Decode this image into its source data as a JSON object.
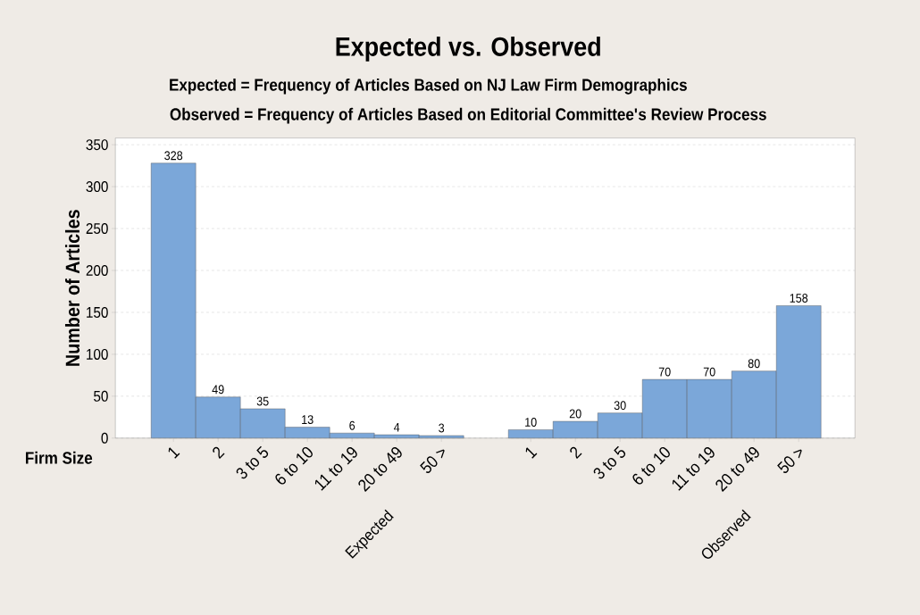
{
  "chart_data": {
    "type": "bar",
    "title": "Expected vs. Observed",
    "subtitle": "Expected = Frequency of Articles Based on NJ Law Firm Demographics",
    "annotations": [
      "Observed = Frequency of Articles Based on Editorial Committee's Review Process",
      "Expected",
      "Observed"
    ],
    "xlabel": "Firm Size",
    "ylabel": "Number of Articles",
    "categories": [
      "1",
      "2",
      "3 to 5",
      "6 to 10",
      "11 to 19",
      "20 to 49",
      "50 >",
      null,
      "1",
      "2",
      "3 to 5",
      "6 to 10",
      "11 to 19",
      "20 to 49",
      "50 >"
    ],
    "values": [
      328,
      49,
      35,
      13,
      6,
      4,
      3,
      null,
      10,
      20,
      30,
      70,
      70,
      80,
      158
    ],
    "color": "#7ba7d9",
    "data_labels": true,
    "grid": "y",
    "ylim": [
      0,
      358
    ],
    "yticks": [
      0,
      50,
      100,
      150,
      200,
      250,
      300,
      350
    ]
  }
}
